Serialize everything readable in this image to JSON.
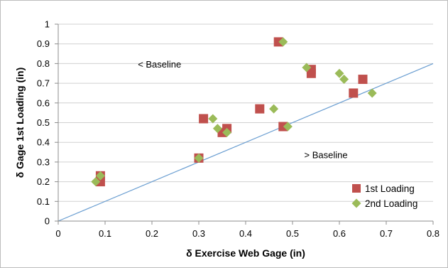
{
  "chart_data": {
    "type": "scatter",
    "title": "",
    "xlabel": "δ Exercise Web Gage (in)",
    "ylabel": "δ Gage 1st Loading (in)",
    "xlim": [
      0,
      0.8
    ],
    "ylim": [
      0,
      1
    ],
    "x_ticks": [
      "0",
      "0.1",
      "0.2",
      "0.3",
      "0.4",
      "0.5",
      "0.6",
      "0.7",
      "0.8"
    ],
    "y_ticks": [
      "0",
      "0.1",
      "0.2",
      "0.3",
      "0.4",
      "0.5",
      "0.6",
      "0.7",
      "0.8",
      "0.9",
      "1"
    ],
    "grid": {
      "horizontal": true,
      "vertical": false
    },
    "legend_position": "lower-right",
    "baseline": {
      "x": [
        0,
        0.8
      ],
      "y": [
        0,
        0.8
      ],
      "color": "#6a9ed1"
    },
    "annotations": {
      "above": "< Baseline",
      "below": "> Baseline"
    },
    "series": [
      {
        "name": "1st Loading",
        "marker": "square",
        "color": "#c0504d",
        "points": [
          [
            0.09,
            0.23
          ],
          [
            0.09,
            0.2
          ],
          [
            0.3,
            0.32
          ],
          [
            0.31,
            0.52
          ],
          [
            0.35,
            0.45
          ],
          [
            0.36,
            0.47
          ],
          [
            0.43,
            0.57
          ],
          [
            0.47,
            0.91
          ],
          [
            0.48,
            0.48
          ],
          [
            0.54,
            0.77
          ],
          [
            0.54,
            0.75
          ],
          [
            0.63,
            0.65
          ],
          [
            0.65,
            0.72
          ]
        ]
      },
      {
        "name": "2nd Loading",
        "marker": "diamond",
        "color": "#9bbb59",
        "points": [
          [
            0.08,
            0.2
          ],
          [
            0.09,
            0.23
          ],
          [
            0.3,
            0.32
          ],
          [
            0.33,
            0.52
          ],
          [
            0.34,
            0.47
          ],
          [
            0.36,
            0.45
          ],
          [
            0.46,
            0.57
          ],
          [
            0.48,
            0.91
          ],
          [
            0.49,
            0.48
          ],
          [
            0.53,
            0.78
          ],
          [
            0.6,
            0.75
          ],
          [
            0.61,
            0.72
          ],
          [
            0.67,
            0.65
          ]
        ]
      }
    ]
  }
}
